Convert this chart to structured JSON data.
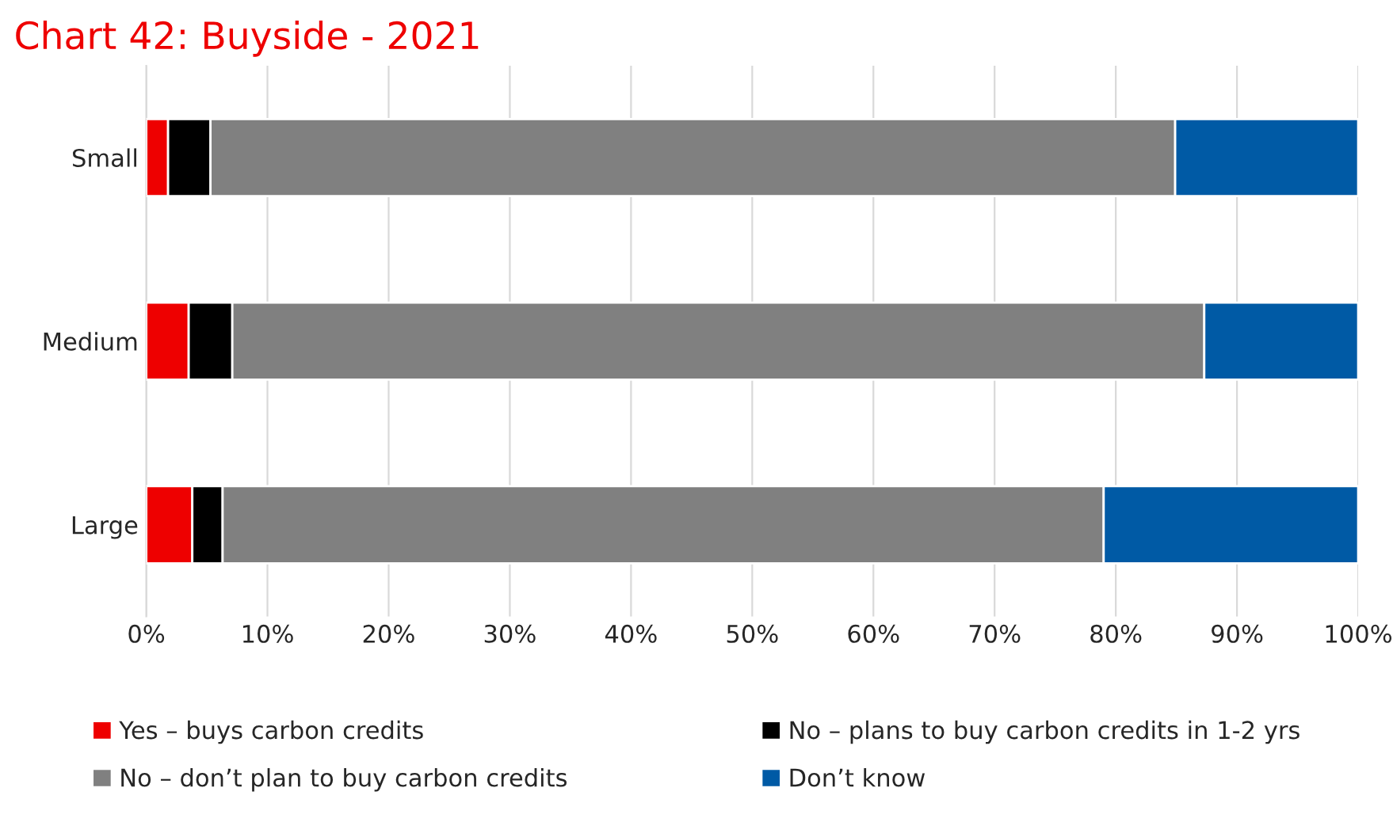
{
  "chart_data": {
    "type": "bar",
    "orientation": "horizontal",
    "stacked": true,
    "title": "Chart 42: Buyside - 2021",
    "categories": [
      "Small",
      "Medium",
      "Large"
    ],
    "series": [
      {
        "name": "Yes – buys carbon credits",
        "color": "#ee0000",
        "values": [
          1.8,
          3.5,
          3.8
        ]
      },
      {
        "name": "No – plans to buy carbon credits in 1-2 yrs",
        "color": "#000000",
        "values": [
          3.5,
          3.6,
          2.5
        ]
      },
      {
        "name": "No – don’t plan to buy carbon credits",
        "color": "#808080",
        "values": [
          79.6,
          80.2,
          72.7
        ]
      },
      {
        "name": "Don’t know",
        "color": "#005aa5",
        "values": [
          15.1,
          12.7,
          21.0
        ]
      }
    ],
    "xlim": [
      0,
      100
    ],
    "xticks": [
      {
        "value": 0,
        "label": "0%"
      },
      {
        "value": 10,
        "label": "10%"
      },
      {
        "value": 20,
        "label": "20%"
      },
      {
        "value": 30,
        "label": "30%"
      },
      {
        "value": 40,
        "label": "40%"
      },
      {
        "value": 50,
        "label": "50%"
      },
      {
        "value": 60,
        "label": "60%"
      },
      {
        "value": 70,
        "label": "70%"
      },
      {
        "value": 80,
        "label": "80%"
      },
      {
        "value": 90,
        "label": "90%"
      },
      {
        "value": 100,
        "label": "100%"
      }
    ],
    "grid": "x",
    "legend": "bottom"
  }
}
